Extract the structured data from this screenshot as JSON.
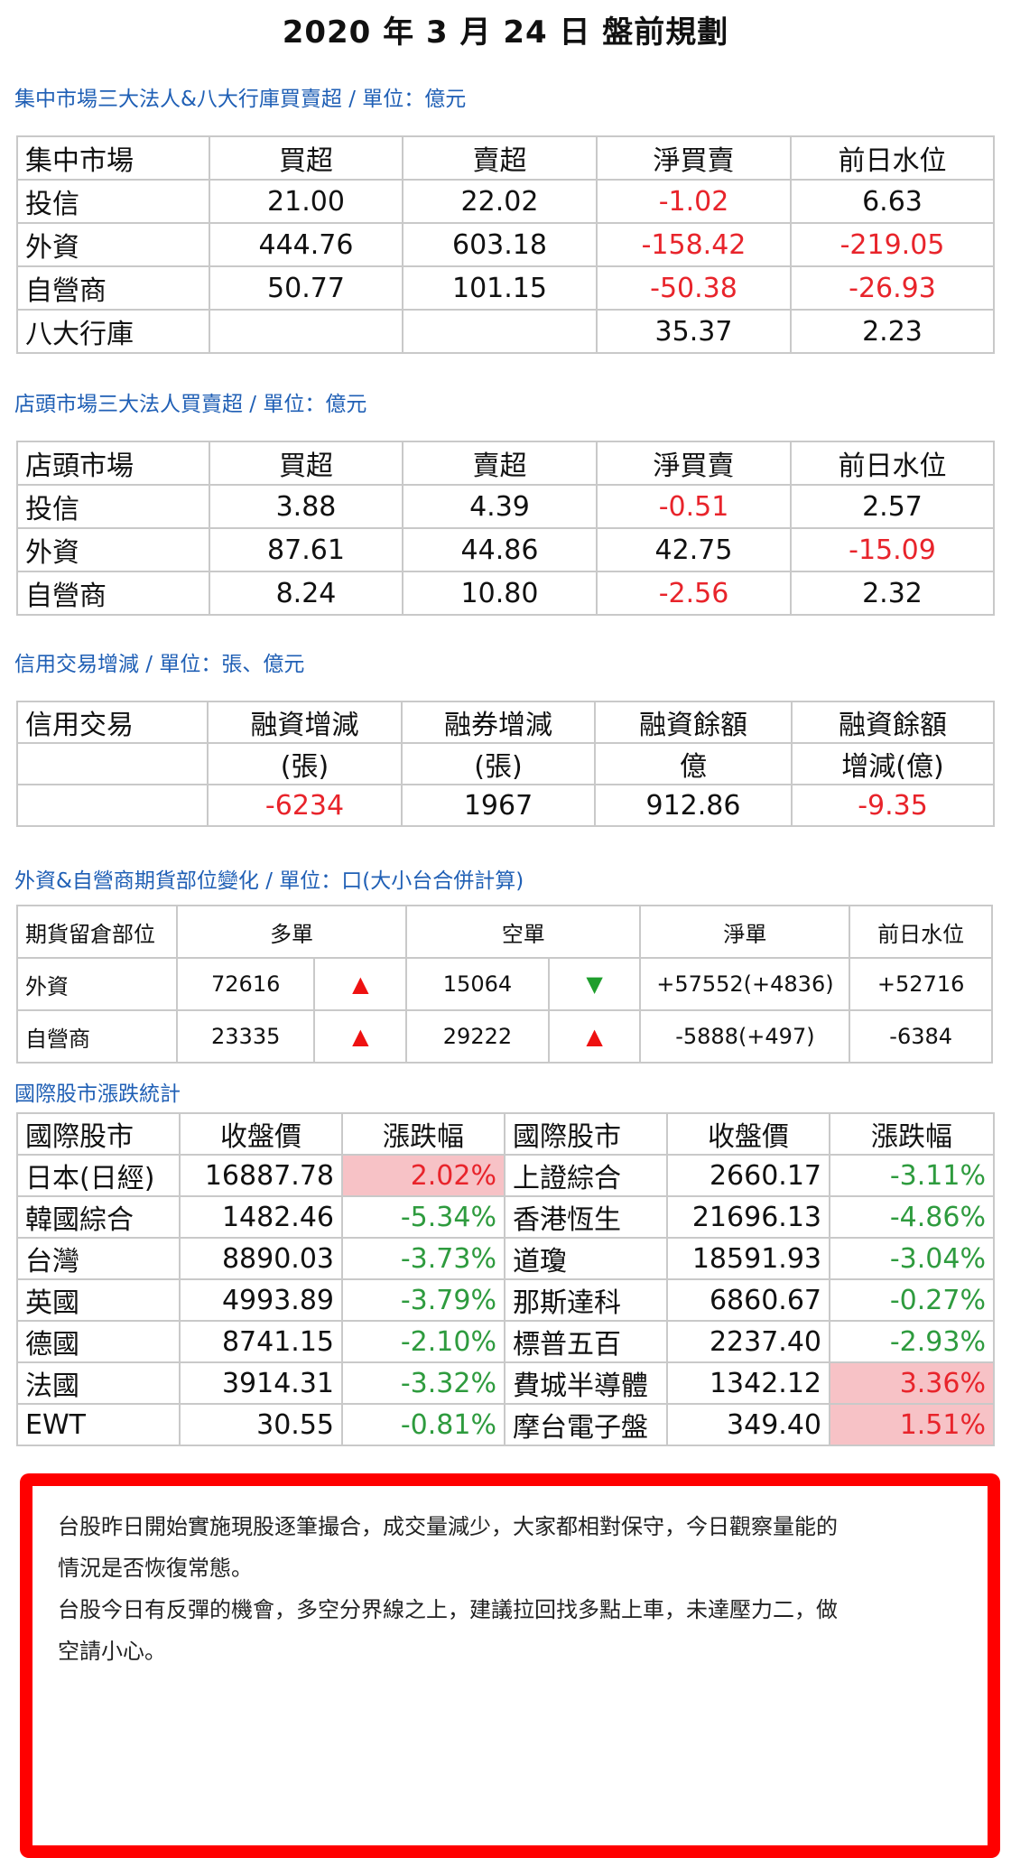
{
  "title": "2020 年 3 月 24 日  盤前規劃",
  "section1": {
    "heading": "集中市場三大法人&八大行庫買賣超 / 單位：億元",
    "headers": [
      "集中市場",
      "買超",
      "賣超",
      "淨買賣",
      "前日水位"
    ],
    "rows": [
      {
        "name": "投信",
        "buy": "21.00",
        "sell": "22.02",
        "net": "-1.02",
        "prev": "6.63"
      },
      {
        "name": "外資",
        "buy": "444.76",
        "sell": "603.18",
        "net": "-158.42",
        "prev": "-219.05"
      },
      {
        "name": "自營商",
        "buy": "50.77",
        "sell": "101.15",
        "net": "-50.38",
        "prev": "-26.93"
      },
      {
        "name": "八大行庫",
        "buy": "",
        "sell": "",
        "net": "35.37",
        "prev": "2.23"
      }
    ]
  },
  "section2": {
    "heading": "店頭市場三大法人買賣超 / 單位：億元",
    "headers": [
      "店頭市場",
      "買超",
      "賣超",
      "淨買賣",
      "前日水位"
    ],
    "rows": [
      {
        "name": "投信",
        "buy": "3.88",
        "sell": "4.39",
        "net": "-0.51",
        "prev": "2.57"
      },
      {
        "name": "外資",
        "buy": "87.61",
        "sell": "44.86",
        "net": "42.75",
        "prev": "-15.09"
      },
      {
        "name": "自營商",
        "buy": "8.24",
        "sell": "10.80",
        "net": "-2.56",
        "prev": "2.32"
      }
    ]
  },
  "section3": {
    "heading": "信用交易增減 / 單位：張、億元",
    "headers": [
      "信用交易",
      "融資增減",
      "融券增減",
      "融資餘額",
      "融資餘額"
    ],
    "subheaders": [
      "",
      "(張)",
      "(張)",
      "億",
      "增減(億)"
    ],
    "values": [
      "",
      "-6234",
      "1967",
      "912.86",
      "-9.35"
    ]
  },
  "section4": {
    "heading": "外資&自營商期貨部位變化 / 單位：口(大小台合併計算)",
    "headers": [
      "期貨留倉部位",
      "多單",
      "空單",
      "淨單",
      "前日水位"
    ],
    "rows": [
      {
        "name": "外資",
        "long": "72616",
        "long_arrow": "▲",
        "short": "15064",
        "short_arrow": "▼",
        "net": "+57552(+4836)",
        "prev": "+52716"
      },
      {
        "name": "自營商",
        "long": "23335",
        "long_arrow": "▲",
        "short": "29222",
        "short_arrow": "▲",
        "net": "-5888(+497)",
        "prev": "-6384"
      }
    ]
  },
  "section5": {
    "heading": "國際股市漲跌統計",
    "headers": [
      "國際股市",
      "收盤價",
      "漲跌幅",
      "國際股市",
      "收盤價",
      "漲跌幅"
    ],
    "rows": [
      {
        "n1": "日本(日經)",
        "p1": "16887.78",
        "c1": "2.02%",
        "n2": "上證綜合",
        "p2": "2660.17",
        "c2": "-3.11%"
      },
      {
        "n1": "韓國綜合",
        "p1": "1482.46",
        "c1": "-5.34%",
        "n2": "香港恆生",
        "p2": "21696.13",
        "c2": "-4.86%"
      },
      {
        "n1": "台灣",
        "p1": "8890.03",
        "c1": "-3.73%",
        "n2": "道瓊",
        "p2": "18591.93",
        "c2": "-3.04%"
      },
      {
        "n1": "英國",
        "p1": "4993.89",
        "c1": "-3.79%",
        "n2": "那斯達科",
        "p2": "6860.67",
        "c2": "-0.27%"
      },
      {
        "n1": "德國",
        "p1": "8741.15",
        "c1": "-2.10%",
        "n2": "標普五百",
        "p2": "2237.40",
        "c2": "-2.93%"
      },
      {
        "n1": "法國",
        "p1": "3914.31",
        "c1": "-3.32%",
        "n2": "費城半導體",
        "p2": "1342.12",
        "c2": "3.36%"
      },
      {
        "n1": "EWT",
        "p1": "30.55",
        "c1": "-0.81%",
        "n2": "摩台電子盤",
        "p2": "349.40",
        "c2": "1.51%"
      }
    ]
  },
  "note": {
    "lines": [
      "台股昨日開始實施現股逐筆撮合，成交量減少，大家都相對保守，今日觀察量能的",
      "情況是否恢復常態。",
      "台股今日有反彈的機會，多空分界線之上，建議拉回找多點上車，未達壓力二，做",
      "空請小心。"
    ]
  },
  "colors": {
    "heading": "#1f5fb5",
    "negative": "#e8242b",
    "positive_pct": "#2e9b3e",
    "highlight": "#f7c2c6",
    "box_border": "#ff0000"
  }
}
